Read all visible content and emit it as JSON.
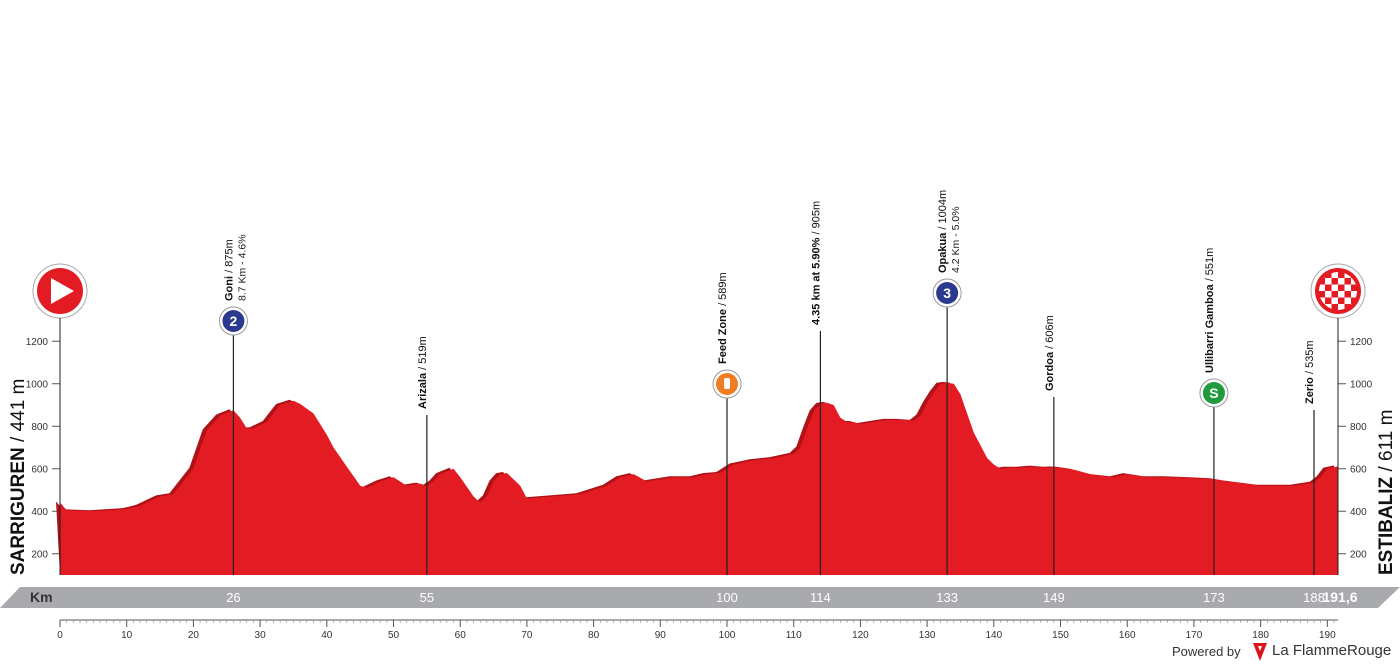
{
  "chart_data": {
    "type": "area",
    "xlim": [
      0,
      191.6
    ],
    "ylim": [
      100,
      1300
    ],
    "y_ticks": [
      200,
      400,
      600,
      800,
      1000,
      1200
    ],
    "x_ticks": [
      0,
      10,
      20,
      30,
      40,
      50,
      60,
      70,
      80,
      90,
      100,
      110,
      120,
      130,
      140,
      150,
      160,
      170,
      180,
      190
    ],
    "km_axis_title": "Km",
    "km_markers": [
      {
        "km": 26,
        "label": "26"
      },
      {
        "km": 55,
        "label": "55"
      },
      {
        "km": 100,
        "label": "100"
      },
      {
        "km": 114,
        "label": "114"
      },
      {
        "km": 133,
        "label": "133"
      },
      {
        "km": 149,
        "label": "149"
      },
      {
        "km": 173,
        "label": "173"
      },
      {
        "km": 188,
        "label": "188"
      }
    ],
    "total_distance_label": "191,6",
    "start_label": "SARRIGUREN / 441 m",
    "finish_label": "ESTIBALIZ / 611 m",
    "profile": {
      "x": [
        0,
        1,
        5,
        10,
        12,
        15,
        17,
        20,
        22,
        24,
        26,
        27,
        28,
        29,
        31,
        32,
        33,
        35,
        36,
        38,
        40,
        41,
        43,
        45,
        46,
        48,
        50,
        52,
        54,
        55,
        56,
        57,
        59,
        60,
        62,
        63,
        64,
        65,
        66,
        67,
        69,
        70,
        74,
        78,
        80,
        82,
        84,
        86,
        88,
        92,
        95,
        97,
        99,
        101,
        104,
        107,
        110,
        111,
        112,
        113,
        114,
        115,
        116,
        117,
        118,
        119,
        120,
        122,
        124,
        125,
        126,
        128,
        129,
        130,
        131,
        132,
        133,
        134,
        135,
        136,
        137,
        139,
        140,
        141,
        142,
        144,
        146,
        148,
        149,
        150,
        152,
        155,
        158,
        160,
        163,
        166,
        170,
        173,
        175,
        180,
        185,
        188,
        189,
        190,
        191.6
      ],
      "y": [
        441,
        405,
        400,
        410,
        425,
        470,
        480,
        600,
        780,
        850,
        875,
        840,
        790,
        790,
        820,
        860,
        900,
        920,
        905,
        860,
        760,
        700,
        610,
        520,
        510,
        540,
        560,
        520,
        530,
        519,
        540,
        575,
        600,
        560,
        470,
        440,
        470,
        540,
        575,
        580,
        520,
        460,
        470,
        480,
        500,
        520,
        560,
        575,
        540,
        560,
        560,
        575,
        580,
        620,
        640,
        650,
        670,
        700,
        790,
        870,
        905,
        910,
        900,
        840,
        820,
        820,
        810,
        820,
        830,
        830,
        830,
        825,
        850,
        910,
        960,
        1000,
        1004,
        1000,
        950,
        860,
        770,
        650,
        620,
        600,
        605,
        605,
        610,
        605,
        606,
        605,
        595,
        570,
        560,
        575,
        560,
        560,
        555,
        551,
        540,
        520,
        520,
        535,
        560,
        600,
        611
      ]
    },
    "waypoints": [
      {
        "km": 26,
        "elev": 875,
        "icon": "category-2-climb-icon",
        "icon_text": "2",
        "name": "Goni",
        "elev_label": " / 875m",
        "sub": "8.7 Km - 4.6%",
        "name_bold": true
      },
      {
        "km": 55,
        "elev": 519,
        "icon": "",
        "name": "Arizala",
        "elev_label": " / 519m",
        "sub": "",
        "name_bold": true
      },
      {
        "km": 100,
        "elev": 589,
        "icon": "feed-zone-icon",
        "name": "Feed Zone",
        "elev_label": " / 589m",
        "sub": "",
        "name_bold": true
      },
      {
        "km": 114,
        "elev": 905,
        "icon": "",
        "name": "4.35 km  at 5.90%",
        "elev_label": " / 905m",
        "sub": "",
        "name_bold": true
      },
      {
        "km": 133,
        "elev": 1004,
        "icon": "category-3-climb-icon",
        "icon_text": "3",
        "name": "Opakua",
        "elev_label": " / 1004m",
        "sub": "4.2 Km - 5.0%",
        "name_bold": true
      },
      {
        "km": 149,
        "elev": 606,
        "icon": "",
        "name": "Gordoa",
        "elev_label": " / 606m",
        "sub": "",
        "name_bold": true
      },
      {
        "km": 173,
        "elev": 551,
        "icon": "sprint-icon",
        "icon_text": "S",
        "name": "Ullibarri Gamboa",
        "elev_label": " / 551m",
        "sub": "",
        "name_bold": true
      },
      {
        "km": 188,
        "elev": 535,
        "icon": "",
        "name": "Zerio",
        "elev_label": " / 535m",
        "sub": "",
        "name_bold": true
      }
    ],
    "colors": {
      "fill": "#e31b23",
      "shade": "#b01217",
      "km_bar": "#a8aaad",
      "climb_badge": "#2b3a8f",
      "feed_badge": "#f07d21",
      "sprint_badge": "#1f9a3c"
    },
    "start_icon": "start-play-icon",
    "finish_icon": "finish-checkered-flag-icon"
  },
  "footer": {
    "powered_by": "Powered by",
    "brand": "La FlammeRouge",
    "brand_icon": "flamme-rouge-logo-icon"
  }
}
